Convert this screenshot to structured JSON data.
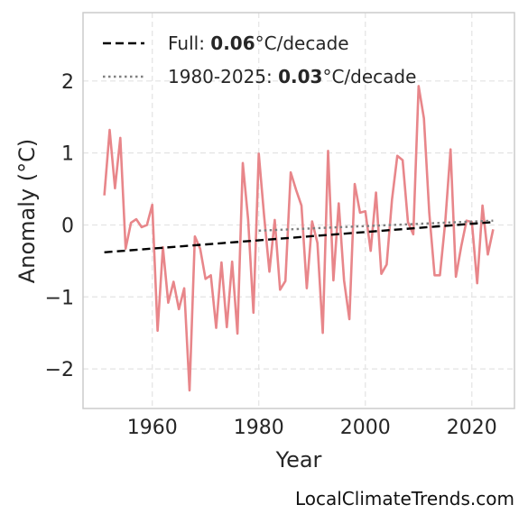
{
  "chart_data": {
    "type": "line",
    "xlabel": "Year",
    "ylabel": "Anomaly (°C)",
    "xlim": [
      1947,
      2028
    ],
    "ylim": [
      -2.55,
      2.95
    ],
    "xticks": [
      1960,
      1980,
      2000,
      2020
    ],
    "xtick_labels": [
      "1960",
      "1980",
      "2000",
      "2020"
    ],
    "yticks": [
      -2,
      -1,
      0,
      1,
      2
    ],
    "ytick_labels": [
      "−2",
      "−1",
      "0",
      "1",
      "2"
    ],
    "grid": true,
    "legend_position": "top-left",
    "series": [
      {
        "style": "line",
        "color": "#e8868a",
        "x": [
          1951,
          1952,
          1953,
          1954,
          1955,
          1956,
          1957,
          1958,
          1959,
          1960,
          1961,
          1962,
          1963,
          1964,
          1965,
          1966,
          1967,
          1968,
          1969,
          1970,
          1971,
          1972,
          1973,
          1974,
          1975,
          1976,
          1977,
          1978,
          1979,
          1980,
          1981,
          1982,
          1983,
          1984,
          1985,
          1986,
          1987,
          1988,
          1989,
          1990,
          1991,
          1992,
          1993,
          1994,
          1995,
          1996,
          1997,
          1998,
          1999,
          2000,
          2001,
          2002,
          2003,
          2004,
          2005,
          2006,
          2007,
          2008,
          2009,
          2010,
          2011,
          2012,
          2013,
          2014,
          2015,
          2016,
          2017,
          2018,
          2019,
          2020,
          2021,
          2022,
          2023,
          2024
        ],
        "y": [
          0.41,
          1.32,
          0.51,
          1.21,
          -0.33,
          0.03,
          0.08,
          -0.03,
          0.0,
          0.28,
          -1.47,
          -0.31,
          -1.08,
          -0.79,
          -1.17,
          -0.88,
          -2.3,
          -0.16,
          -0.33,
          -0.75,
          -0.7,
          -1.43,
          -0.52,
          -1.42,
          -0.51,
          -1.51,
          0.86,
          0.08,
          -1.22,
          0.99,
          0.13,
          -0.65,
          0.07,
          -0.9,
          -0.78,
          0.73,
          0.49,
          0.27,
          -0.88,
          0.05,
          -0.25,
          -1.5,
          1.03,
          -0.77,
          0.3,
          -0.77,
          -1.31,
          0.57,
          0.17,
          0.19,
          -0.36,
          0.45,
          -0.68,
          -0.55,
          0.35,
          0.96,
          0.9,
          0.04,
          -0.13,
          1.93,
          1.48,
          0.17,
          -0.7,
          -0.7,
          0.04,
          1.05,
          -0.72,
          -0.3,
          0.06,
          0.04,
          -0.81,
          0.27,
          -0.41,
          -0.06
        ]
      },
      {
        "name": "Full: 0.06°C/decade",
        "style": "dashed",
        "color": "#000000",
        "x": [
          1951,
          2024
        ],
        "y": [
          -0.38,
          0.04
        ]
      },
      {
        "name": "1980-2025: 0.03°C/decade",
        "style": "dotted",
        "color": "#808080",
        "x": [
          1980,
          2024
        ],
        "y": [
          -0.08,
          0.06
        ]
      }
    ],
    "legend": [
      {
        "prefix": "Full: ",
        "value": "0.06",
        "suffix": "°C/decade",
        "style": "dashed",
        "color": "#000000"
      },
      {
        "prefix": "1980-2025: ",
        "value": "0.03",
        "suffix": "°C/decade",
        "style": "dotted",
        "color": "#808080"
      }
    ]
  },
  "watermark": "LocalClimateTrends.com"
}
